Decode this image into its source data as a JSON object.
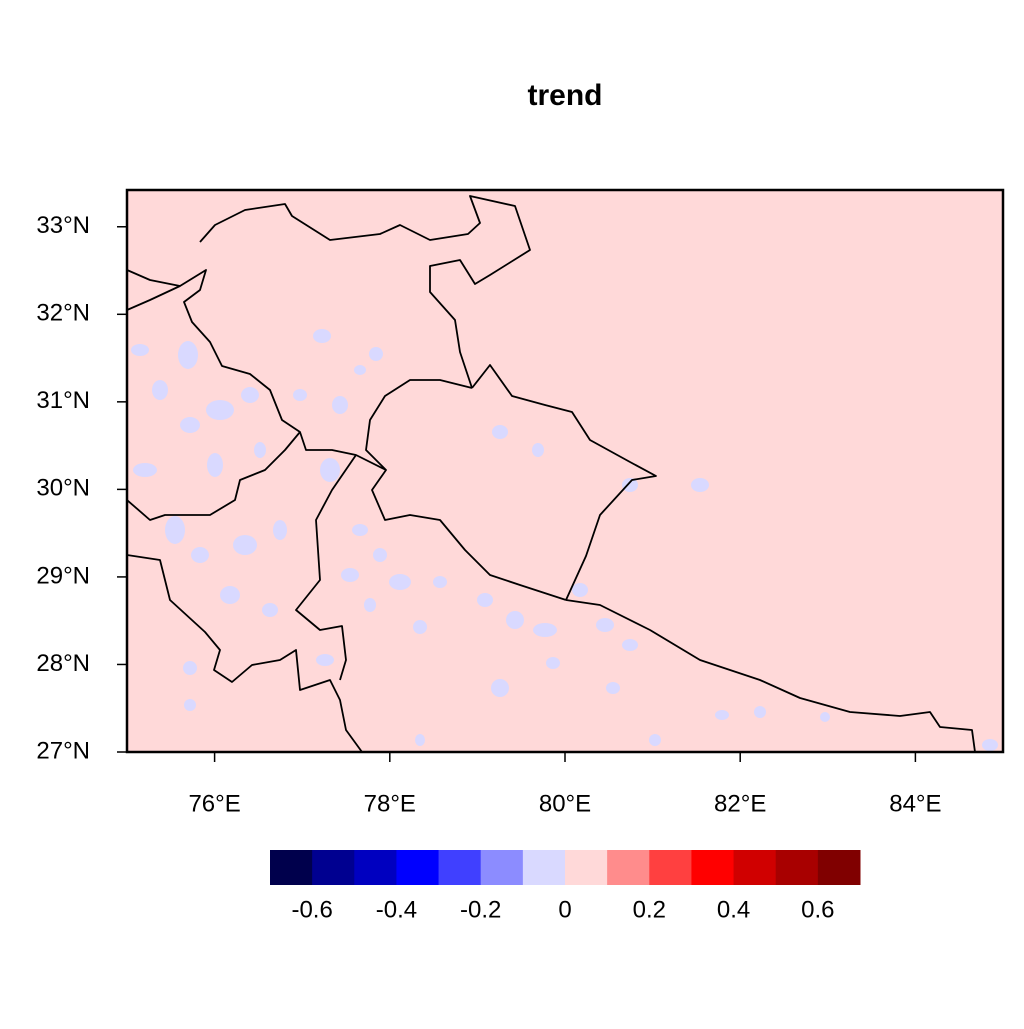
{
  "chart_data": {
    "type": "map",
    "title": "trend",
    "xlim": [
      75,
      85
    ],
    "ylim": [
      27,
      33.42
    ],
    "xticks": [
      {
        "value": 76,
        "label": "76°E"
      },
      {
        "value": 78,
        "label": "78°E"
      },
      {
        "value": 80,
        "label": "80°E"
      },
      {
        "value": 82,
        "label": "82°E"
      },
      {
        "value": 84,
        "label": "84°E"
      }
    ],
    "yticks": [
      {
        "value": 27,
        "label": "27°N"
      },
      {
        "value": 28,
        "label": "28°N"
      },
      {
        "value": 29,
        "label": "29°N"
      },
      {
        "value": 30,
        "label": "30°N"
      },
      {
        "value": 31,
        "label": "31°N"
      },
      {
        "value": 32,
        "label": "32°N"
      },
      {
        "value": 33,
        "label": "33°N"
      }
    ],
    "colorbar": {
      "lim": [
        -0.7,
        0.7
      ],
      "colors": [
        "#00004c",
        "#000090",
        "#0000c0",
        "#0000ff",
        "#4040ff",
        "#8c8cff",
        "#d9d9ff",
        "#ffd9d9",
        "#ff8c8c",
        "#ff4040",
        "#ff0000",
        "#d00000",
        "#a80000",
        "#800000"
      ],
      "ticks": [
        -0.6,
        -0.4,
        -0.2,
        0,
        0.2,
        0.4,
        0.6
      ]
    }
  }
}
